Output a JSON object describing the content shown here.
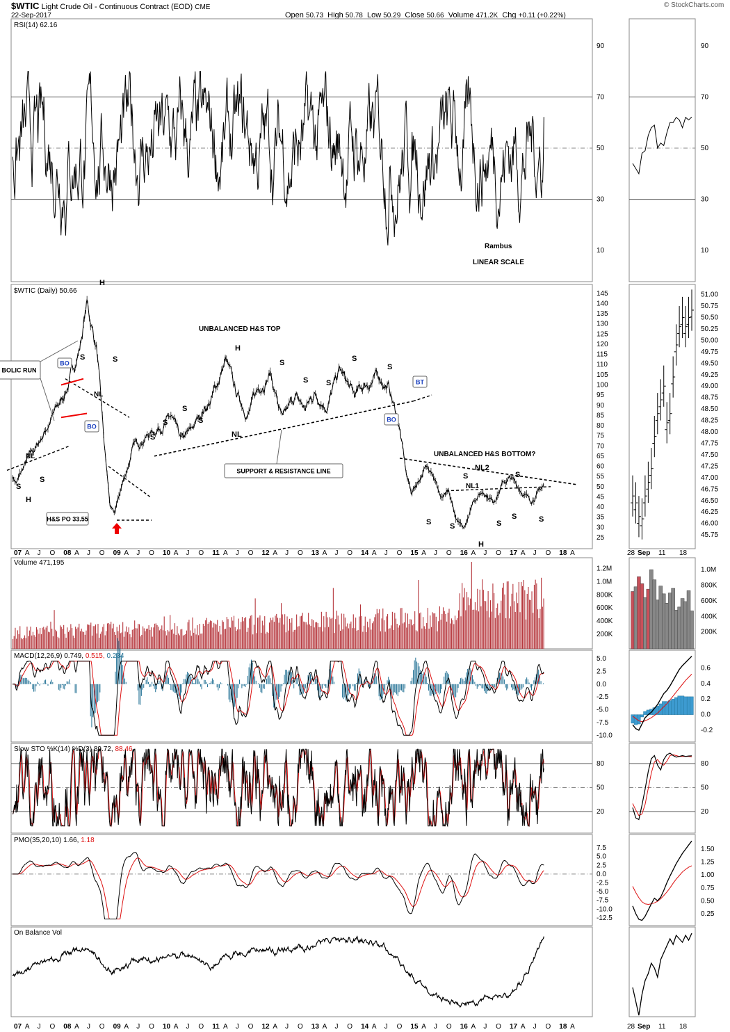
{
  "header": {
    "symbol": "$WTIC",
    "name": "Light Crude Oil - Continuous Contract (EOD)",
    "exchange": "CME",
    "date": "22-Sep-2017",
    "open_label": "Open",
    "open": "50.73",
    "high_label": "High",
    "high": "50.78",
    "low_label": "Low",
    "low": "50.29",
    "close_label": "Close",
    "close": "50.66",
    "volume_label": "Volume",
    "volume": "471.2K",
    "chg_label": "Chg",
    "chg": "+0.11 (+0.22%)",
    "watermark": "© StockCharts.com"
  },
  "x_axis": {
    "labels": [
      "07",
      "A",
      "J",
      "O",
      "08",
      "A",
      "J",
      "O",
      "09",
      "A",
      "J",
      "O",
      "10",
      "A",
      "J",
      "O",
      "11",
      "A",
      "J",
      "O",
      "12",
      "A",
      "J",
      "O",
      "13",
      "A",
      "J",
      "O",
      "14",
      "A",
      "J",
      "O",
      "15",
      "A",
      "J",
      "O",
      "16",
      "A",
      "J",
      "O",
      "17",
      "A",
      "J",
      "O",
      "18",
      "A"
    ],
    "bold_labels": [
      "07",
      "08",
      "09",
      "10",
      "11",
      "12",
      "13",
      "14",
      "15",
      "16",
      "17",
      "18"
    ],
    "right_labels": [
      "28",
      "Sep",
      "11",
      "18"
    ]
  },
  "panels": {
    "rsi": {
      "title": "RSI(14) 62.16",
      "ticks": [
        "90",
        "70",
        "50",
        "30",
        "10"
      ],
      "notes": [
        "Rambus",
        "LINEAR SCALE"
      ]
    },
    "price": {
      "title": "$WTIC (Daily) 50.66",
      "ticks": [
        "145",
        "140",
        "135",
        "130",
        "125",
        "120",
        "115",
        "110",
        "105",
        "100",
        "95",
        "90",
        "85",
        "80",
        "75",
        "70",
        "65",
        "60",
        "55",
        "50",
        "45",
        "40",
        "35",
        "30",
        "25"
      ],
      "right_ticks": [
        "51.00",
        "50.75",
        "50.50",
        "50.25",
        "50.00",
        "49.75",
        "49.50",
        "49.25",
        "49.00",
        "48.75",
        "48.50",
        "48.25",
        "48.00",
        "47.75",
        "47.50",
        "47.25",
        "47.00",
        "46.75",
        "46.50",
        "46.25",
        "46.00",
        "45.75"
      ]
    },
    "volume": {
      "title": "Volume 471,195",
      "ticks": [
        "1.2M",
        "1.0M",
        "800K",
        "600K",
        "400K",
        "200K"
      ],
      "right_ticks": [
        "1.0M",
        "800K",
        "600K",
        "400K",
        "200K"
      ]
    },
    "macd": {
      "title_prefix": "MACD(12,26,9)",
      "v1": "0.749",
      "v2": "0.515",
      "v3": "0.234",
      "ticks": [
        "5.0",
        "2.5",
        "0.0",
        "-2.5",
        "-5.0",
        "-7.5",
        "-10.0"
      ],
      "right_ticks": [
        "0.6",
        "0.4",
        "0.2",
        "0.0",
        "-0.2"
      ]
    },
    "sto": {
      "title_prefix": "Slow STO %K(14) %D(3)",
      "v1": "89.72",
      "v2": "88.46",
      "ticks": [
        "80",
        "50",
        "20"
      ]
    },
    "pmo": {
      "title_prefix": "PMO(35,20,10)",
      "v1": "1.66",
      "v2": "1.18",
      "ticks": [
        "7.5",
        "5.0",
        "2.5",
        "0.0",
        "-2.5",
        "-5.0",
        "-7.5",
        "-10.0",
        "-12.5"
      ],
      "right_ticks": [
        "1.50",
        "1.25",
        "1.00",
        "0.75",
        "0.50",
        "0.25"
      ]
    },
    "obv": {
      "title": "On Balance Vol"
    }
  },
  "annotations": {
    "parabolic": "BOLIC RUN",
    "unbalanced_top": "UNBALANCED H&S TOP",
    "unbalanced_bottom": "UNBALANCED H&S BOTTOM?",
    "support_line": "SUPPORT & RESISTANCE LINE",
    "price_objective": "H&S PO 33.55",
    "nl": "NL",
    "nl1": "NL1",
    "nl2": "NL2",
    "bo": "BO",
    "bt": "BT",
    "h": "H",
    "s": "S"
  },
  "chart_data": {
    "type": "line",
    "title": "$WTIC Light Crude Oil - Continuous Contract (EOD)",
    "x": [
      "2007-01",
      "2007-07",
      "2008-01",
      "2008-07",
      "2009-01",
      "2009-07",
      "2010-01",
      "2010-07",
      "2011-01",
      "2011-07",
      "2012-01",
      "2012-07",
      "2013-01",
      "2013-07",
      "2014-01",
      "2014-07",
      "2015-01",
      "2015-07",
      "2016-01",
      "2016-07",
      "2017-01",
      "2017-07",
      "2017-09"
    ],
    "series": [
      {
        "name": "$WTIC (Daily)",
        "values": [
          55,
          72,
          93,
          140,
          42,
          68,
          80,
          77,
          92,
          97,
          100,
          86,
          95,
          104,
          95,
          100,
          48,
          50,
          30,
          46,
          53,
          46,
          50.66
        ]
      }
    ],
    "ylim": [
      25,
      148
    ],
    "levels": {
      "h_s_po": 33.55,
      "last": 50.66,
      "open": 50.73,
      "high": 50.78,
      "low": 50.29,
      "rsi": 62.16,
      "macd": 0.749,
      "macd_signal": 0.515,
      "macd_hist": 0.234,
      "sto_k": 89.72,
      "sto_d": 88.46,
      "pmo": 1.66,
      "pmo_signal": 1.18,
      "volume": 471195
    }
  }
}
